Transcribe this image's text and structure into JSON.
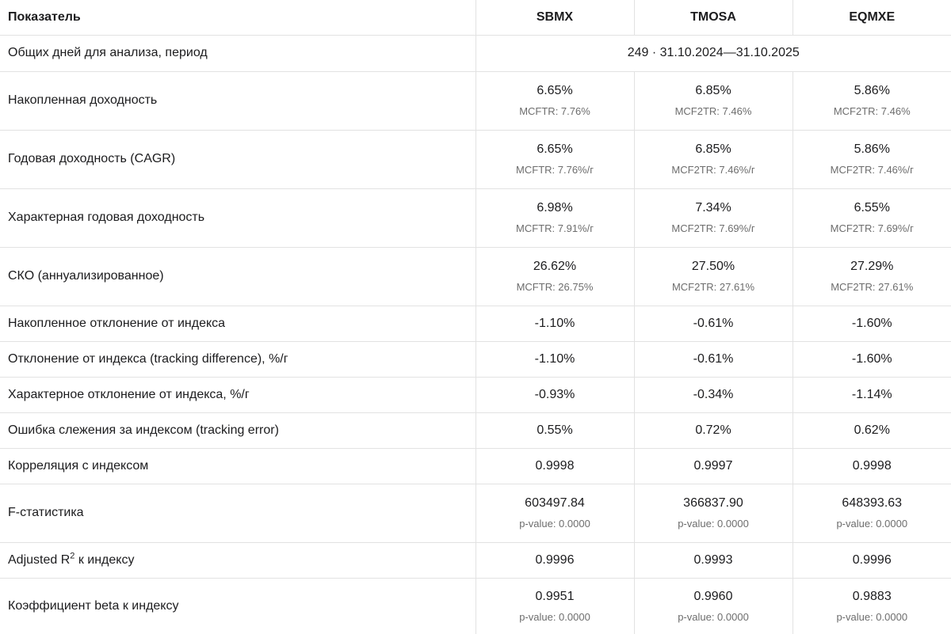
{
  "table": {
    "header": {
      "metric_label": "Показатель",
      "columns": [
        "SBMX",
        "TMOSA",
        "EQMXE"
      ]
    },
    "period_row": {
      "label": "Общих дней для анализа, период",
      "value": "249 · 31.10.2024—31.10.2025"
    },
    "rows": [
      {
        "label": "Накопленная доходность",
        "cells": [
          {
            "main": "6.65%",
            "sub": "MCFTR: 7.76%"
          },
          {
            "main": "6.85%",
            "sub": "MCF2TR: 7.46%"
          },
          {
            "main": "5.86%",
            "sub": "MCF2TR: 7.46%"
          }
        ]
      },
      {
        "label": "Годовая доходность (CAGR)",
        "cells": [
          {
            "main": "6.65%",
            "sub": "MCFTR: 7.76%/г"
          },
          {
            "main": "6.85%",
            "sub": "MCF2TR: 7.46%/г"
          },
          {
            "main": "5.86%",
            "sub": "MCF2TR: 7.46%/г"
          }
        ]
      },
      {
        "label": "Характерная годовая доходность",
        "cells": [
          {
            "main": "6.98%",
            "sub": "MCFTR: 7.91%/г"
          },
          {
            "main": "7.34%",
            "sub": "MCF2TR: 7.69%/г"
          },
          {
            "main": "6.55%",
            "sub": "MCF2TR: 7.69%/г"
          }
        ]
      },
      {
        "label": "СКО (аннуализированное)",
        "cells": [
          {
            "main": "26.62%",
            "sub": "MCFTR: 26.75%"
          },
          {
            "main": "27.50%",
            "sub": "MCF2TR: 27.61%"
          },
          {
            "main": "27.29%",
            "sub": "MCF2TR: 27.61%"
          }
        ]
      },
      {
        "label": "Накопленное отклонение от индекса",
        "cells": [
          {
            "main": "-1.10%"
          },
          {
            "main": "-0.61%"
          },
          {
            "main": "-1.60%"
          }
        ]
      },
      {
        "label": "Отклонение от индекса (tracking difference), %/г",
        "cells": [
          {
            "main": "-1.10%"
          },
          {
            "main": "-0.61%"
          },
          {
            "main": "-1.60%"
          }
        ]
      },
      {
        "label": "Характерное отклонение от индекса, %/г",
        "cells": [
          {
            "main": "-0.93%"
          },
          {
            "main": "-0.34%"
          },
          {
            "main": "-1.14%"
          }
        ]
      },
      {
        "label": "Ошибка слежения за индексом (tracking error)",
        "cells": [
          {
            "main": "0.55%"
          },
          {
            "main": "0.72%"
          },
          {
            "main": "0.62%"
          }
        ]
      },
      {
        "label": "Корреляция с индексом",
        "cells": [
          {
            "main": "0.9998"
          },
          {
            "main": "0.9997"
          },
          {
            "main": "0.9998"
          }
        ]
      },
      {
        "label": "F-статистика",
        "cells": [
          {
            "main": "603497.84",
            "sub": "p-value: 0.0000"
          },
          {
            "main": "366837.90",
            "sub": "p-value: 0.0000"
          },
          {
            "main": "648393.63",
            "sub": "p-value: 0.0000"
          }
        ]
      },
      {
        "label_parts": {
          "prefix": "Adjusted R",
          "sup": "2",
          "suffix": " к индексу"
        },
        "cells": [
          {
            "main": "0.9996"
          },
          {
            "main": "0.9993"
          },
          {
            "main": "0.9996"
          }
        ]
      },
      {
        "label": "Коэффициент beta к индексу",
        "cells": [
          {
            "main": "0.9951",
            "sub": "p-value: 0.0000"
          },
          {
            "main": "0.9960",
            "sub": "p-value: 0.0000"
          },
          {
            "main": "0.9883",
            "sub": "p-value: 0.0000"
          }
        ]
      }
    ],
    "colors": {
      "text_primary": "#1c1c1e",
      "text_secondary": "#6d6d6d",
      "border": "#e2e2e2",
      "background": "#ffffff"
    }
  }
}
